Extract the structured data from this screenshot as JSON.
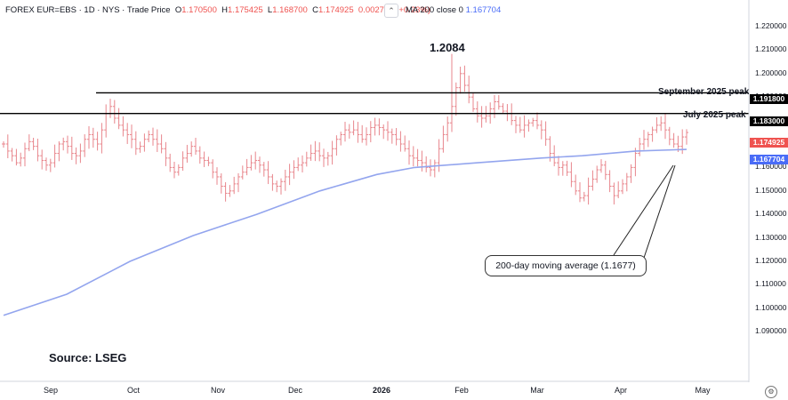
{
  "header": {
    "symbol": "FOREX EUR=EBS · 1D · NYS · Trade Price",
    "open_label": "O",
    "open_value": "1.170500",
    "high_label": "H",
    "high_value": "1.175425",
    "low_label": "L",
    "low_value": "1.168700",
    "close_label": "C",
    "close_value": "1.174925",
    "change_value": "0.002725 (+0.23%)",
    "ma_label": "MA 200 close 0",
    "ma_value": "1.167704"
  },
  "annotations": {
    "peak_value": "1.2084",
    "september_peak": "September 2025 peak",
    "july_peak": "July 2025 peak",
    "ma_callout": "200-day moving average (1.1677)",
    "source": "Source: LSEG"
  },
  "price_tags": {
    "september": "1.191800",
    "july": "1.183000",
    "last": "1.174925",
    "ma": "1.167704"
  },
  "y_axis": {
    "ticks": [
      "1.220000",
      "1.210000",
      "1.200000",
      "1.190000",
      "1.180000",
      "1.170000",
      "1.160000",
      "1.150000",
      "1.140000",
      "1.130000",
      "1.120000",
      "1.110000",
      "1.100000",
      "1.090000"
    ]
  },
  "x_axis": {
    "ticks": [
      {
        "label": "Sep",
        "bold": false
      },
      {
        "label": "Oct",
        "bold": false
      },
      {
        "label": "Nov",
        "bold": false
      },
      {
        "label": "Dec",
        "bold": false
      },
      {
        "label": "2026",
        "bold": true
      },
      {
        "label": "Feb",
        "bold": false
      },
      {
        "label": "Mar",
        "bold": false
      },
      {
        "label": "Apr",
        "bold": false
      },
      {
        "label": "May",
        "bold": false
      }
    ]
  },
  "colors": {
    "bar": "#e8868c",
    "ma_line": "#93a5ee",
    "level_line": "#000000",
    "last_tag_bg": "#ef5350",
    "ma_tag_bg": "#4a6cf7",
    "level_tag_bg": "#000000",
    "axis_border": "#d1d4dc"
  },
  "chart_data": {
    "type": "ohlc",
    "ylim": [
      1.085,
      1.225
    ],
    "x_units": "trading-day index",
    "levels": [
      {
        "name": "September 2025 peak",
        "value": 1.1918
      },
      {
        "name": "July 2025 peak",
        "value": 1.183
      }
    ],
    "ma200": {
      "name": "MA 200 close",
      "x": [
        0,
        20,
        40,
        60,
        80,
        100,
        118,
        130,
        150,
        170,
        183,
        200,
        216
      ],
      "values": [
        1.097,
        1.106,
        1.12,
        1.131,
        1.14,
        1.15,
        1.157,
        1.16,
        1.162,
        1.164,
        1.165,
        1.167,
        1.1677
      ]
    },
    "closes": [
      1.17,
      1.167,
      1.165,
      1.162,
      1.164,
      1.168,
      1.171,
      1.169,
      1.165,
      1.163,
      1.161,
      1.162,
      1.166,
      1.17,
      1.171,
      1.169,
      1.166,
      1.165,
      1.167,
      1.172,
      1.174,
      1.172,
      1.17,
      1.176,
      1.183,
      1.186,
      1.181,
      1.178,
      1.176,
      1.174,
      1.172,
      1.168,
      1.169,
      1.172,
      1.174,
      1.172,
      1.17,
      1.168,
      1.164,
      1.16,
      1.158,
      1.16,
      1.164,
      1.166,
      1.169,
      1.167,
      1.164,
      1.163,
      1.162,
      1.158,
      1.156,
      1.152,
      1.149,
      1.15,
      1.153,
      1.156,
      1.158,
      1.16,
      1.162,
      1.163,
      1.161,
      1.159,
      1.156,
      1.153,
      1.152,
      1.154,
      1.156,
      1.158,
      1.16,
      1.161,
      1.162,
      1.164,
      1.166,
      1.167,
      1.165,
      1.164,
      1.165,
      1.168,
      1.172,
      1.174,
      1.176,
      1.175,
      1.176,
      1.174,
      1.172,
      1.174,
      1.177,
      1.178,
      1.177,
      1.176,
      1.175,
      1.174,
      1.172,
      1.17,
      1.168,
      1.165,
      1.164,
      1.163,
      1.162,
      1.16,
      1.159,
      1.162,
      1.168,
      1.174,
      1.179,
      1.186,
      1.194,
      1.2,
      1.195,
      1.19,
      1.185,
      1.182,
      1.181,
      1.182,
      1.185,
      1.188,
      1.186,
      1.184,
      1.183,
      1.18,
      1.178,
      1.176,
      1.178,
      1.179,
      1.18,
      1.178,
      1.176,
      1.172,
      1.166,
      1.162,
      1.16,
      1.161,
      1.158,
      1.154,
      1.15,
      1.147,
      1.148,
      1.152,
      1.155,
      1.159,
      1.161,
      1.157,
      1.152,
      1.148,
      1.15,
      1.153,
      1.156,
      1.16,
      1.166,
      1.17,
      1.172,
      1.174,
      1.176,
      1.178,
      1.179,
      1.176,
      1.172,
      1.17,
      1.169,
      1.173,
      1.1749
    ],
    "lows_offset": 0.003,
    "highs_offset": 0.0032,
    "peak_point": {
      "x": 105,
      "high": 1.2084
    }
  }
}
